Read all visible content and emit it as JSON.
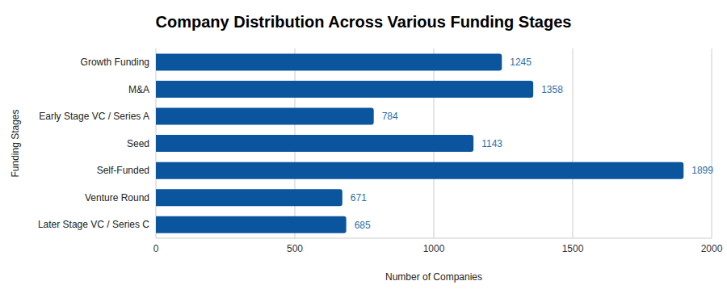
{
  "chart_data": {
    "type": "bar",
    "title": "Company Distribution Across Various Funding Stages",
    "x_label": "Number of Companies",
    "y_label": "Funding Stages",
    "categories": [
      "Growth Funding",
      "M&A",
      "Early Stage VC / Series A",
      "Seed",
      "Self-Funded",
      "Venture Round",
      "Later Stage VC / Series C"
    ],
    "values": [
      1245,
      1358,
      784,
      1143,
      1899,
      671,
      685
    ],
    "color": "#0b559f",
    "orientation": "horizontal",
    "xlim": [
      0,
      2000
    ],
    "xticks": [
      0,
      500,
      1000,
      1500,
      2000
    ],
    "grid": true,
    "data_labels": true
  }
}
